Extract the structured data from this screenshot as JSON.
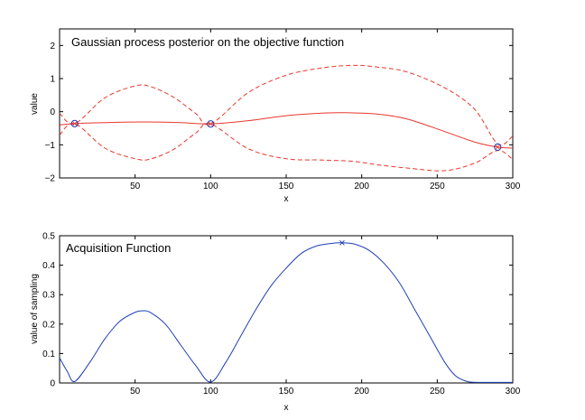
{
  "chart_data": [
    {
      "type": "line",
      "title": "Gaussian process posterior on the objective function",
      "xlabel": "x",
      "ylabel": "value",
      "xlim": [
        0,
        300
      ],
      "ylim": [
        -2,
        2.5
      ],
      "xticks": [
        50,
        100,
        150,
        200,
        250,
        300
      ],
      "yticks": [
        -2,
        -1,
        0,
        1,
        2
      ],
      "colors": {
        "mean": "#e8382e",
        "bounds": "#e8382e",
        "observations": "#1f3fb5"
      },
      "series": [
        {
          "role": "mean",
          "style": "solid",
          "x": [
            0,
            10,
            30,
            55,
            80,
            100,
            125,
            150,
            175,
            190,
            210,
            230,
            255,
            275,
            290,
            300
          ],
          "y": [
            -0.4,
            -0.36,
            -0.33,
            -0.31,
            -0.33,
            -0.37,
            -0.27,
            -0.12,
            -0.04,
            -0.03,
            -0.07,
            -0.22,
            -0.6,
            -0.92,
            -1.07,
            -1.1
          ]
        },
        {
          "role": "upper",
          "style": "dashed",
          "x": [
            0,
            10,
            30,
            50,
            60,
            75,
            90,
            100,
            125,
            150,
            175,
            195,
            210,
            230,
            255,
            275,
            290,
            300
          ],
          "y": [
            -0.05,
            -0.36,
            0.42,
            0.78,
            0.76,
            0.45,
            -0.05,
            -0.37,
            0.58,
            1.1,
            1.33,
            1.4,
            1.35,
            1.2,
            0.72,
            0.06,
            -0.97,
            -0.74
          ]
        },
        {
          "role": "lower",
          "style": "dashed",
          "x": [
            0,
            10,
            30,
            50,
            60,
            75,
            90,
            100,
            125,
            150,
            175,
            195,
            210,
            230,
            255,
            275,
            290,
            300
          ],
          "y": [
            -0.7,
            -0.36,
            -1.1,
            -1.42,
            -1.43,
            -1.15,
            -0.65,
            -0.37,
            -1.12,
            -1.42,
            -1.46,
            -1.5,
            -1.6,
            -1.7,
            -1.78,
            -1.55,
            -1.17,
            -1.44
          ]
        }
      ],
      "observations": {
        "x": [
          10,
          100,
          290
        ],
        "y": [
          -0.36,
          -0.37,
          -1.07
        ]
      }
    },
    {
      "type": "line",
      "title": "Acquisition Function",
      "xlabel": "x",
      "ylabel": "value of sampling",
      "xlim": [
        0,
        300
      ],
      "ylim": [
        0,
        0.5
      ],
      "xticks": [
        50,
        100,
        150,
        200,
        250,
        300
      ],
      "yticks": [
        0,
        0.1,
        0.2,
        0.3,
        0.4,
        0.5
      ],
      "colors": {
        "line": "#1f3fb5",
        "marker": "#1f3fb5"
      },
      "series": [
        {
          "x": [
            0,
            5,
            10,
            20,
            30,
            40,
            50,
            55,
            60,
            70,
            80,
            90,
            100,
            110,
            120,
            130,
            140,
            150,
            160,
            170,
            180,
            187,
            195,
            205,
            215,
            225,
            235,
            245,
            255,
            262,
            268,
            272,
            280,
            300
          ],
          "y": [
            0.085,
            0.04,
            0.005,
            0.07,
            0.15,
            0.21,
            0.24,
            0.245,
            0.24,
            0.2,
            0.13,
            0.06,
            0.003,
            0.07,
            0.16,
            0.25,
            0.33,
            0.39,
            0.44,
            0.465,
            0.474,
            0.476,
            0.472,
            0.45,
            0.405,
            0.34,
            0.25,
            0.16,
            0.07,
            0.025,
            0.008,
            0.003,
            0.002,
            0.002
          ]
        }
      ],
      "maximum": {
        "x": 187,
        "y": 0.476
      }
    }
  ]
}
